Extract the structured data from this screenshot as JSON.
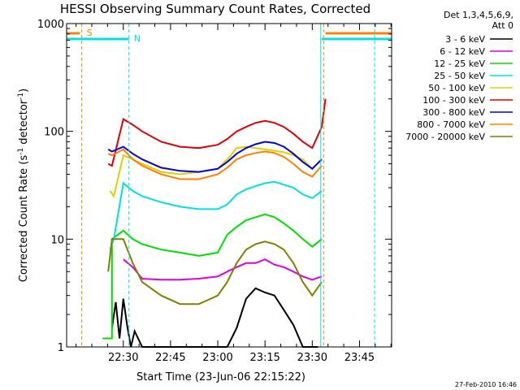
{
  "chart_data": {
    "type": "line",
    "title": "HESSI Observing Summary Count Rates, Corrected",
    "xlabel": "Start Time (23-Jun-06 22:15:22)",
    "ylabel": "Corrected Count Rate (s⁻¹ detector⁻¹)",
    "ylabel_parts": [
      "Corrected Count Rate (s",
      "-1",
      " detector",
      "-1",
      ")"
    ],
    "yscale": "log",
    "ylim": [
      1,
      1000
    ],
    "xlim": [
      22.2,
      23.92
    ],
    "xunit": "hours",
    "x_ticks": [
      {
        "value": 22.5,
        "label": "22:30"
      },
      {
        "value": 22.75,
        "label": "22:45"
      },
      {
        "value": 23.0,
        "label": "23:00"
      },
      {
        "value": 23.25,
        "label": "23:15"
      },
      {
        "value": 23.5,
        "label": "23:30"
      },
      {
        "value": 23.75,
        "label": "23:45"
      }
    ],
    "y_ticks": [
      {
        "value": 1,
        "label": "1"
      },
      {
        "value": 10,
        "label": "10"
      },
      {
        "value": 100,
        "label": "100"
      },
      {
        "value": 1000,
        "label": "1000"
      }
    ],
    "legend_header": [
      "Det 1,3,4,5,6,9,",
      "Att 0"
    ],
    "legend_position": "right",
    "series": [
      {
        "name": "3 - 6 keV",
        "color": "#000000",
        "x": [
          22.44,
          22.46,
          22.48,
          22.5,
          22.52,
          22.54,
          22.56,
          22.6,
          22.7,
          22.8,
          22.9,
          23.0,
          23.05,
          23.1,
          23.15,
          23.2,
          23.25,
          23.3,
          23.35,
          23.4,
          23.45,
          23.5,
          23.53
        ],
        "y": [
          1.5,
          2.6,
          1.2,
          2.8,
          1.6,
          1.0,
          1.4,
          1.0,
          1.0,
          1.0,
          1.0,
          1.0,
          1.0,
          1.5,
          2.8,
          3.5,
          3.2,
          3.0,
          2.2,
          1.6,
          1.0,
          1.0,
          1.0
        ]
      },
      {
        "name": "6 - 12 keV",
        "color": "#e000e0",
        "x": [
          22.5,
          22.55,
          22.6,
          22.7,
          22.8,
          22.9,
          23.0,
          23.05,
          23.1,
          23.15,
          23.2,
          23.25,
          23.3,
          23.35,
          23.4,
          23.45,
          23.5,
          23.55
        ],
        "y": [
          6.5,
          5.5,
          4.3,
          4.2,
          4.2,
          4.3,
          4.5,
          5.0,
          5.5,
          6.0,
          6.0,
          6.5,
          5.8,
          5.5,
          5.0,
          4.5,
          4.2,
          4.5
        ]
      },
      {
        "name": "12 - 25 keV",
        "color": "#00e000",
        "x": [
          22.39,
          22.44,
          22.44,
          22.5,
          22.55,
          22.6,
          22.7,
          22.8,
          22.9,
          23.0,
          23.05,
          23.1,
          23.15,
          23.2,
          23.25,
          23.3,
          23.35,
          23.4,
          23.45,
          23.5,
          23.55
        ],
        "y": [
          1.2,
          1.2,
          10,
          12,
          10,
          9,
          8,
          7.5,
          7,
          7.5,
          11,
          13,
          15,
          16,
          17,
          16,
          14,
          12,
          10,
          8.5,
          10
        ]
      },
      {
        "name": "25 - 50 keV",
        "color": "#00e0e0",
        "x": [
          22.43,
          22.45,
          22.5,
          22.55,
          22.6,
          22.7,
          22.8,
          22.9,
          23.0,
          23.05,
          23.1,
          23.15,
          23.2,
          23.25,
          23.3,
          23.35,
          23.4,
          23.45,
          23.5,
          23.55
        ],
        "y": [
          8,
          10,
          33,
          28,
          25,
          22,
          20,
          19,
          19,
          21,
          26,
          29,
          31,
          33,
          34,
          32,
          30,
          26,
          24,
          28
        ]
      },
      {
        "name": "50 - 100 keV",
        "color": "#e0d000",
        "x": [
          22.43,
          22.45,
          22.5,
          22.55,
          22.6,
          22.7,
          22.8,
          22.9,
          23.0,
          23.05,
          23.1,
          23.15,
          23.2,
          23.25,
          23.3,
          23.35,
          23.4,
          23.45,
          23.5,
          23.55
        ],
        "y": [
          28,
          25,
          60,
          55,
          50,
          42,
          40,
          42,
          45,
          55,
          70,
          72,
          70,
          68,
          66,
          64,
          60,
          55,
          45,
          55
        ]
      },
      {
        "name": "100 - 300 keV",
        "color": "#e00000",
        "x": [
          22.42,
          22.44,
          22.5,
          22.55,
          22.6,
          22.7,
          22.8,
          22.9,
          23.0,
          23.05,
          23.1,
          23.15,
          23.2,
          23.25,
          23.3,
          23.35,
          23.4,
          23.45,
          23.5,
          23.55,
          23.57
        ],
        "y": [
          50,
          48,
          130,
          115,
          100,
          80,
          72,
          70,
          75,
          85,
          100,
          110,
          120,
          125,
          120,
          110,
          95,
          80,
          70,
          110,
          200
        ]
      },
      {
        "name": "300 - 800 keV",
        "color": "#0000e0",
        "x": [
          22.42,
          22.44,
          22.5,
          22.55,
          22.6,
          22.7,
          22.8,
          22.9,
          23.0,
          23.05,
          23.1,
          23.15,
          23.2,
          23.25,
          23.3,
          23.35,
          23.4,
          23.45,
          23.5,
          23.55
        ],
        "y": [
          68,
          65,
          72,
          62,
          55,
          46,
          43,
          42,
          45,
          52,
          62,
          70,
          76,
          80,
          78,
          72,
          62,
          52,
          45,
          55
        ]
      },
      {
        "name": "800 - 7000 keV",
        "color": "#ff8000",
        "x": [
          22.42,
          22.44,
          22.5,
          22.55,
          22.6,
          22.7,
          22.8,
          22.9,
          23.0,
          23.05,
          23.1,
          23.15,
          23.2,
          23.25,
          23.3,
          23.35,
          23.4,
          23.45,
          23.5,
          23.55
        ],
        "y": [
          62,
          60,
          68,
          55,
          48,
          40,
          36,
          36,
          40,
          46,
          55,
          60,
          63,
          65,
          63,
          58,
          50,
          42,
          38,
          48
        ]
      },
      {
        "name": "7000 - 20000 keV",
        "color": "#808000",
        "x": [
          22.42,
          22.44,
          22.5,
          22.55,
          22.6,
          22.7,
          22.8,
          22.9,
          23.0,
          23.05,
          23.1,
          23.15,
          23.2,
          23.25,
          23.3,
          23.35,
          23.4,
          23.45,
          23.5,
          23.55
        ],
        "y": [
          5,
          10,
          10,
          6,
          4,
          3,
          2.5,
          2.5,
          3,
          4,
          6,
          8,
          9,
          9.5,
          9,
          8,
          6,
          4,
          3,
          4
        ]
      }
    ],
    "markers": [
      {
        "label": "S",
        "color": "#ff8000"
      },
      {
        "label": "N",
        "color": "#00e0e0"
      }
    ],
    "footer": "27-Feb-2010 16:46"
  }
}
